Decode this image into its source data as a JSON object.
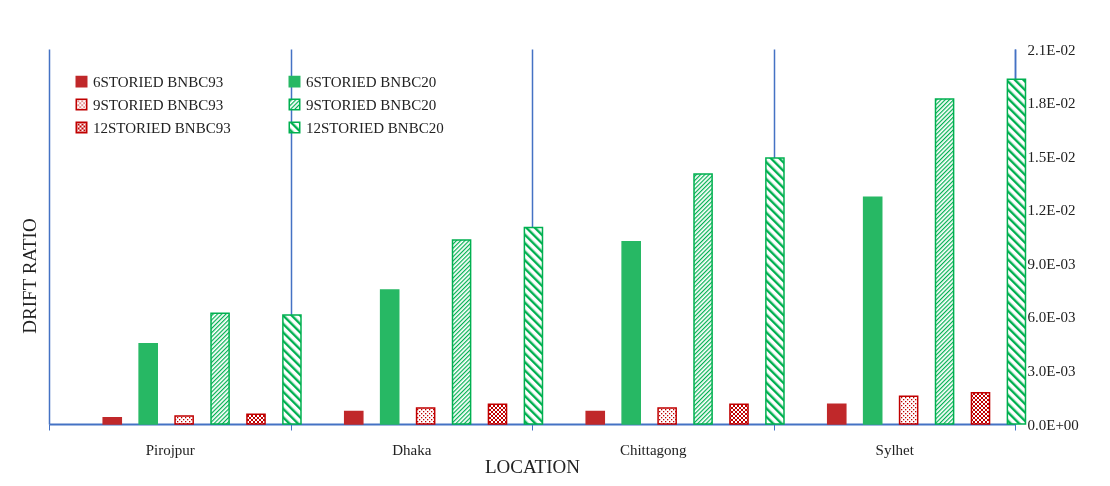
{
  "chart_data": {
    "type": "bar",
    "xlabel": "LOCATION",
    "ylabel": "DRIFT RATIO",
    "categories": [
      "Pirojpur",
      "Dhaka",
      "Chittagong",
      "Sylhet"
    ],
    "series": [
      {
        "name": "6STORIED BNBC93",
        "color": "#c0282a",
        "values": [
          0.00035,
          0.0007,
          0.0007,
          0.0011
        ]
      },
      {
        "name": "6STORIED BNBC20",
        "color": "#27b864",
        "values": [
          0.0045,
          0.0075,
          0.0102,
          0.0127
        ]
      },
      {
        "name": "9STORIED BNBC93",
        "color": "#c00000",
        "values": [
          0.00045,
          0.0009,
          0.0009,
          0.00155
        ]
      },
      {
        "name": "9STORIED BNBC20",
        "color": "#00b050",
        "values": [
          0.0062,
          0.0103,
          0.014,
          0.0182
        ]
      },
      {
        "name": "12STORIED BNBC93",
        "color": "#c00000",
        "values": [
          0.00055,
          0.0011,
          0.0011,
          0.00175
        ]
      },
      {
        "name": "12STORIED BNBC20",
        "color": "#00b050",
        "values": [
          0.0061,
          0.011,
          0.0149,
          0.0193
        ]
      }
    ],
    "ylim": [
      0,
      0.021
    ],
    "yticks": [
      {
        "value": 0,
        "label": "0.0E+00"
      },
      {
        "value": 0.003,
        "label": "3.0E-03"
      },
      {
        "value": 0.006,
        "label": "6.0E-03"
      },
      {
        "value": 0.009,
        "label": "9.0E-03"
      },
      {
        "value": 0.012,
        "label": "1.2E-02"
      },
      {
        "value": 0.015,
        "label": "1.5E-02"
      },
      {
        "value": 0.018,
        "label": "1.8E-02"
      },
      {
        "value": 0.021,
        "label": "2.1E-02"
      }
    ],
    "grid": "x",
    "legend": "top left"
  }
}
